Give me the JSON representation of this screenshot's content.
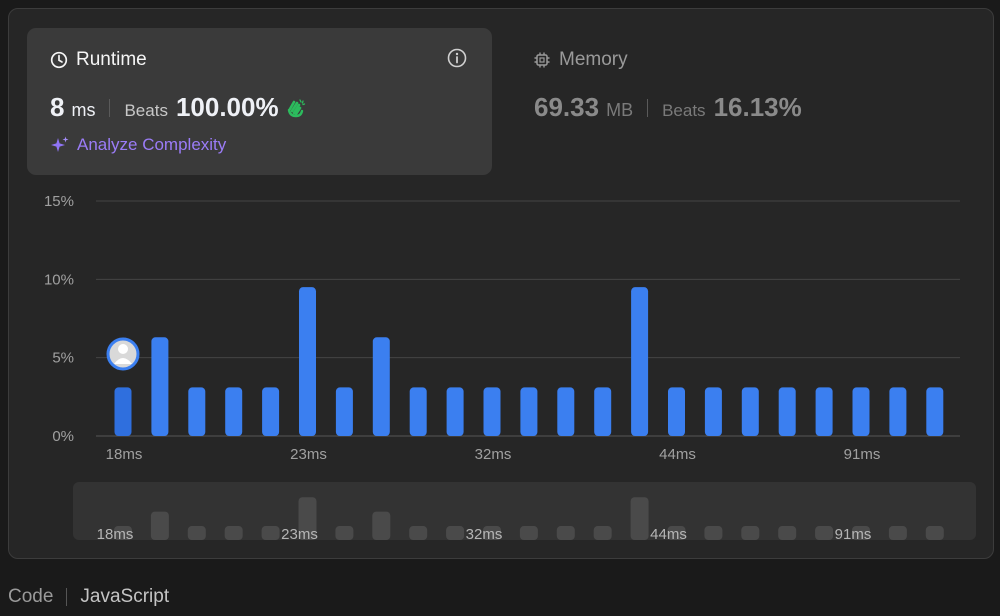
{
  "runtime": {
    "title": "Runtime",
    "value": "8",
    "unit": "ms",
    "beats_label": "Beats",
    "beats_value": "100.00%",
    "analyze_label": "Analyze Complexity"
  },
  "memory": {
    "title": "Memory",
    "value": "69.33",
    "unit": "MB",
    "beats_label": "Beats",
    "beats_value": "16.13%"
  },
  "icons": [
    "clock-icon",
    "info-icon",
    "clap-icon",
    "sparkle-icon",
    "chip-icon",
    "avatar-icon"
  ],
  "colors": {
    "bar": "#3b7ff0",
    "highlight_bar": "#2f6fde",
    "accent_purple": "#9b7cf7",
    "clap_green": "#2cbb5d",
    "overview_bar": "#4a4a4a"
  },
  "chart_data": {
    "type": "bar",
    "title": "",
    "xlabel": "",
    "ylabel": "",
    "ylim": [
      0,
      15
    ],
    "yticks": [
      "15%",
      "10%",
      "5%",
      "0%"
    ],
    "x_tick_labels": [
      "18ms",
      "23ms",
      "32ms",
      "44ms",
      "91ms"
    ],
    "x_tick_indices": [
      0,
      5,
      10,
      15,
      20
    ],
    "grid": true,
    "values": [
      3.1,
      6.3,
      3.1,
      3.1,
      3.1,
      9.5,
      3.1,
      6.3,
      3.1,
      3.1,
      3.1,
      3.1,
      3.1,
      3.1,
      9.5,
      3.1,
      3.1,
      3.1,
      3.1,
      3.1,
      3.1,
      3.1,
      3.1
    ],
    "highlighted_index": 0
  },
  "footer": {
    "code_label": "Code",
    "language": "JavaScript"
  }
}
